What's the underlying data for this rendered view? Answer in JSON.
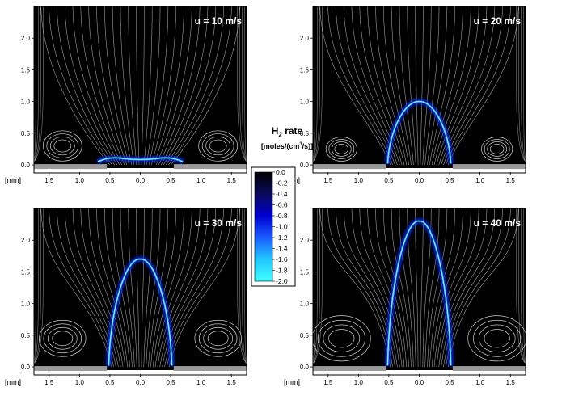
{
  "figure": {
    "axis_unit_label": "[mm]",
    "y_ticks": [
      "0.0",
      "0.5",
      "1.0",
      "1.5",
      "2.0"
    ],
    "x_ticks": [
      "1.5",
      "1.0",
      "0.5",
      "0.0",
      "0.5",
      "1.0",
      "1.5"
    ],
    "panels": [
      {
        "label": "u = 10 m/s",
        "flame_height_mm": 0.1,
        "flame_halfwidth_mm": 0.55,
        "vortex_center_y_mm": 0.3,
        "vortex_size": 1.0
      },
      {
        "label": "u = 20 m/s",
        "flame_height_mm": 1.0,
        "flame_halfwidth_mm": 0.52,
        "vortex_center_y_mm": 0.25,
        "vortex_size": 0.8
      },
      {
        "label": "u = 30 m/s",
        "flame_height_mm": 1.7,
        "flame_halfwidth_mm": 0.52,
        "vortex_center_y_mm": 0.45,
        "vortex_size": 1.2
      },
      {
        "label": "u = 40 m/s",
        "flame_height_mm": 2.3,
        "flame_halfwidth_mm": 0.52,
        "vortex_center_y_mm": 0.45,
        "vortex_size": 1.5
      }
    ],
    "colorbar": {
      "title": "H",
      "title_sub": "2",
      "title_suffix": " rate",
      "unit_prefix": "[moles/(cm",
      "unit_sup": "3",
      "unit_suffix": "/s)]",
      "ticks": [
        "0.0",
        "-0.2",
        "-0.4",
        "-0.6",
        "-0.8",
        "-1.0",
        "-1.2",
        "-1.4",
        "-1.6",
        "-1.8",
        "-2.0"
      ],
      "range": [
        0.0,
        -2.0
      ],
      "colors": [
        "#000000",
        "#0a0a5a",
        "#0000d0",
        "#1a5cff",
        "#20c8ff",
        "#40ffff"
      ]
    }
  }
}
